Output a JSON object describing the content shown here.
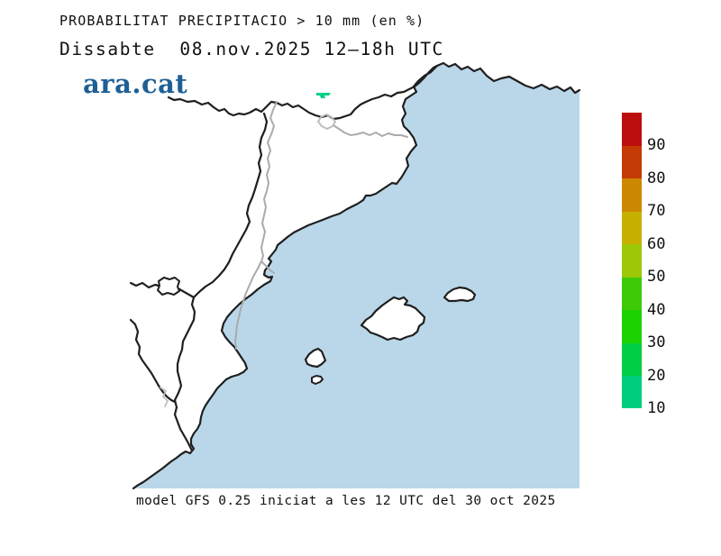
{
  "header": {
    "title": "PROBABILITAT PRECIPITACIO > 10 mm (en %)",
    "subtitle": "Dissabte  08.nov.2025 12—18h UTC",
    "brand": "ara.cat"
  },
  "footer": {
    "caption": "model GFS 0.25 iniciat a les 12 UTC del 30 oct 2025"
  },
  "map": {
    "sea_color": "#B9D7E9",
    "land_color": "#FFFFFF",
    "coast_color": "#1F1F1F",
    "province_border_color": "#ABABAB",
    "precip_spot_color": "#00D084",
    "precip_spot_level": "10-20 %"
  },
  "colorbar": {
    "unit": "%",
    "levels": [
      {
        "value": "10",
        "color": "#00CE7E"
      },
      {
        "value": "20",
        "color": "#00CE44"
      },
      {
        "value": "30",
        "color": "#1CD200"
      },
      {
        "value": "40",
        "color": "#3EC906"
      },
      {
        "value": "50",
        "color": "#9CC808"
      },
      {
        "value": "60",
        "color": "#C8B000"
      },
      {
        "value": "70",
        "color": "#CC8800"
      },
      {
        "value": "80",
        "color": "#C43A04"
      },
      {
        "value": "90",
        "color": "#BC0E0E"
      }
    ]
  }
}
